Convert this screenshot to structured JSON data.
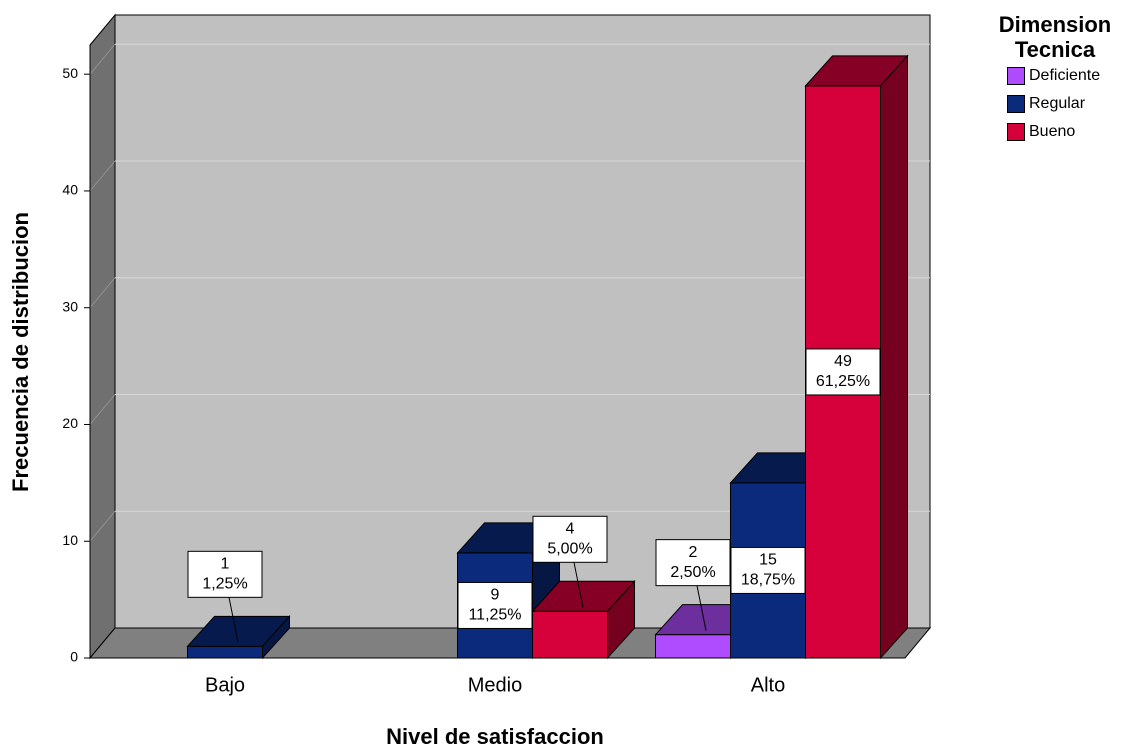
{
  "chart_data": {
    "type": "bar3d",
    "x_label": "Nivel de satisfaccion",
    "y_label": "Frecuencia de distribucion",
    "legend_title": "Dimension Tecnica",
    "legend": "right",
    "categories": [
      "Bajo",
      "Medio",
      "Alto"
    ],
    "series": [
      {
        "name": "Deficiente",
        "color": "#b04cff",
        "values": [
          null,
          null,
          2
        ],
        "percent_labels": [
          null,
          null,
          "2,50%"
        ]
      },
      {
        "name": "Regular",
        "color": "#0c2a7c",
        "values": [
          1,
          9,
          15
        ],
        "percent_labels": [
          "1,25%",
          "11,25%",
          "18,75%"
        ]
      },
      {
        "name": "Bueno",
        "color": "#d6003a",
        "values": [
          null,
          4,
          49
        ],
        "percent_labels": [
          null,
          "5,00%",
          "61,25%"
        ]
      }
    ],
    "ylim": [
      0,
      52.5
    ],
    "yticks": [
      0,
      10,
      20,
      30,
      40,
      50
    ],
    "grid": true
  }
}
